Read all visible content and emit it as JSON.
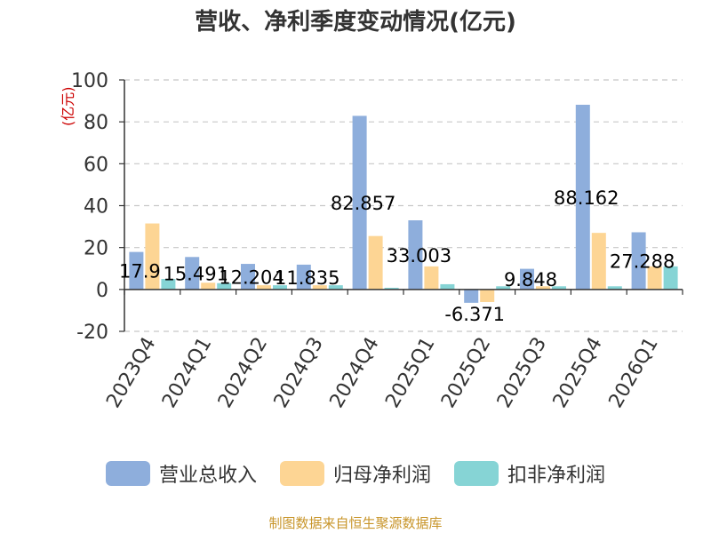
{
  "chart_data": {
    "type": "bar",
    "title": "营收、净利季度变动情况(亿元)",
    "unit_label": "(亿元)",
    "categories": [
      "2023Q4",
      "2024Q1",
      "2024Q2",
      "2024Q3",
      "2024Q4",
      "2025Q1",
      "2025Q2",
      "2025Q3",
      "2025Q4",
      "2026Q1"
    ],
    "series": [
      {
        "name": "营业总收入",
        "color": "#8eaedc",
        "values": [
          17.9,
          15.491,
          12.204,
          11.835,
          82.857,
          33.003,
          -6.371,
          9.848,
          88.162,
          27.288
        ]
      },
      {
        "name": "归母净利润",
        "color": "#fdd594",
        "values": [
          31.5,
          3.2,
          2.0,
          2.0,
          25.5,
          11.0,
          -6.0,
          1.5,
          27.0,
          11.0
        ]
      },
      {
        "name": "扣非净利润",
        "color": "#86d4d5",
        "values": [
          5.0,
          3.0,
          2.0,
          2.0,
          0.8,
          2.5,
          1.5,
          1.5,
          1.5,
          11.0
        ]
      }
    ],
    "data_labels": [
      "17.9",
      "15.491",
      "12.204",
      "11.835",
      "82.857",
      "33.003",
      "-6.371",
      "9.848",
      "88.162",
      "27.288"
    ],
    "ylim": [
      -20,
      100
    ],
    "yticks": [
      -20,
      0,
      20,
      40,
      60,
      80,
      100
    ],
    "grid": true,
    "legend_position": "bottom"
  },
  "legend": [
    {
      "label": "营业总收入",
      "color": "#8eaedc"
    },
    {
      "label": "归母净利润",
      "color": "#fdd594"
    },
    {
      "label": "扣非净利润",
      "color": "#86d4d5"
    }
  ],
  "source_note": "制图数据来自恒生聚源数据库"
}
